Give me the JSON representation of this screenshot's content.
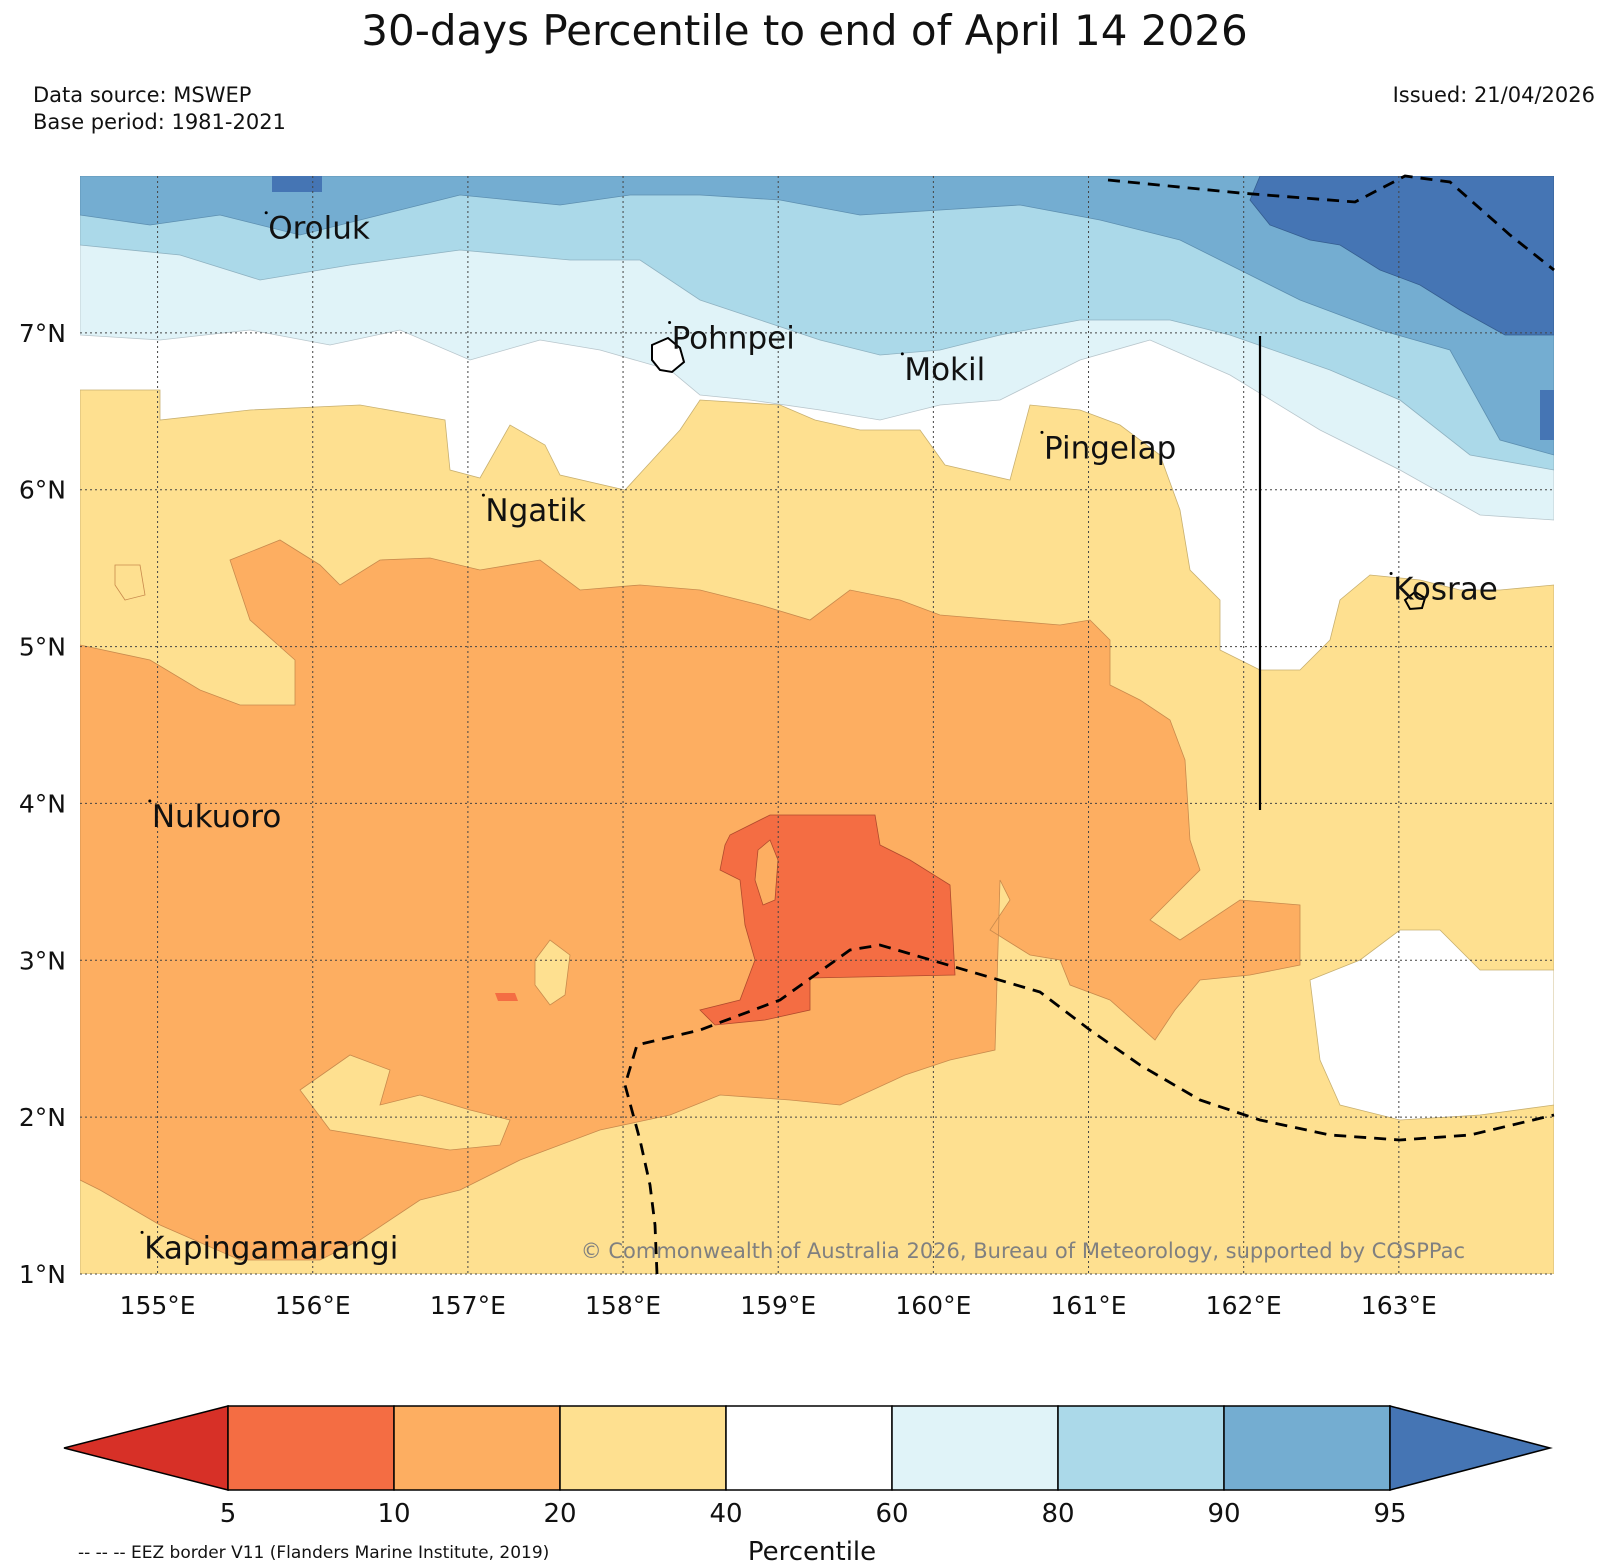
{
  "title": "30-days Percentile to end of April 14 2026",
  "data_source": "Data source: MSWEP",
  "base_period": "Base period: 1981-2021",
  "issued": "Issued: 21/04/2026",
  "copyright": "© Commonwealth of Australia 2026, Bureau of Meteorology, supported by COSPPac",
  "map": {
    "lon_range": [
      154.5,
      164.0
    ],
    "lat_range": [
      1.0,
      8.0
    ],
    "lon_ticks": [
      "155°E",
      "156°E",
      "157°E",
      "158°E",
      "159°E",
      "160°E",
      "161°E",
      "162°E",
      "163°E"
    ],
    "lat_ticks": [
      "1°N",
      "2°N",
      "3°N",
      "4°N",
      "5°N",
      "6°N",
      "7°N"
    ],
    "places": [
      {
        "name": "Oroluk",
        "lon": 155.7,
        "lat": 7.6
      },
      {
        "name": "Pohnpei",
        "lon": 158.3,
        "lat": 6.9
      },
      {
        "name": "Mokil",
        "lon": 159.8,
        "lat": 6.7
      },
      {
        "name": "Pingelap",
        "lon": 160.7,
        "lat": 6.2
      },
      {
        "name": "Ngatik",
        "lon": 157.1,
        "lat": 5.8
      },
      {
        "name": "Kosrae",
        "lon": 162.95,
        "lat": 5.3
      },
      {
        "name": "Nukuoro",
        "lon": 154.95,
        "lat": 3.85
      },
      {
        "name": "Kapingamarangi",
        "lon": 154.9,
        "lat": 1.1
      }
    ]
  },
  "colorbar": {
    "label": "Percentile",
    "ticks": [
      "5",
      "10",
      "20",
      "40",
      "60",
      "80",
      "90",
      "95"
    ],
    "colors": [
      "#d73027",
      "#f46d43",
      "#fdae61",
      "#fee090",
      "#ffffff",
      "#e0f3f8",
      "#abd9e9",
      "#74add1",
      "#4575b4"
    ]
  },
  "legend_note": "-- -- -- EEZ border V11 (Flanders Marine Institute, 2019)"
}
